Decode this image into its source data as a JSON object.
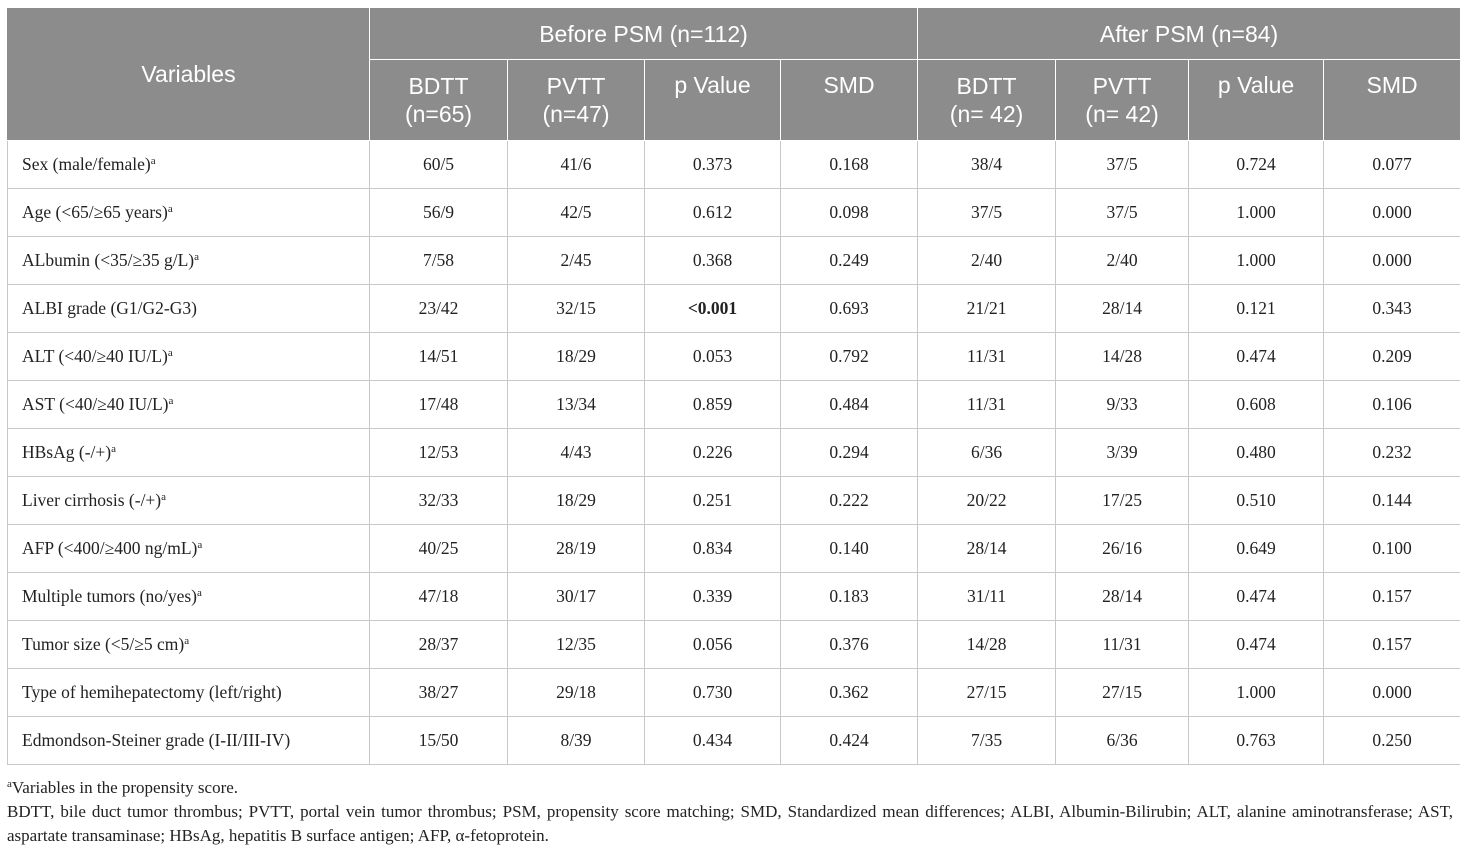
{
  "header": {
    "variables": "Variables",
    "group_before": "Before PSM (n=112)",
    "group_after": "After PSM (n=84)",
    "sub_before": [
      {
        "line1": "BDTT",
        "line2": "(n=65)"
      },
      {
        "line1": "PVTT",
        "line2": "(n=47)"
      },
      {
        "line1": "p Value",
        "line2": ""
      },
      {
        "line1": "SMD",
        "line2": ""
      }
    ],
    "sub_after": [
      {
        "line1": "BDTT",
        "line2": "(n= 42)"
      },
      {
        "line1": "PVTT",
        "line2": "(n= 42)"
      },
      {
        "line1": "p Value",
        "line2": ""
      },
      {
        "line1": "SMD",
        "line2": ""
      }
    ]
  },
  "rows": [
    {
      "label": "Sex (male/female)",
      "sup": "a",
      "values": [
        "60/5",
        "41/6",
        "0.373",
        "0.168",
        "38/4",
        "37/5",
        "0.724",
        "0.077"
      ]
    },
    {
      "label": "Age (<65/≥65 years)",
      "sup": "a",
      "values": [
        "56/9",
        "42/5",
        "0.612",
        "0.098",
        "37/5",
        "37/5",
        "1.000",
        "0.000"
      ]
    },
    {
      "label": "ALbumin (<35/≥35 g/L)",
      "sup": "a",
      "values": [
        "7/58",
        "2/45",
        "0.368",
        "0.249",
        "2/40",
        "2/40",
        "1.000",
        "0.000"
      ]
    },
    {
      "label": "ALBI grade (G1/G2-G3)",
      "sup": "",
      "values": [
        "23/42",
        "32/15",
        "<0.001",
        "0.693",
        "21/21",
        "28/14",
        "0.121",
        "0.343"
      ],
      "bold_col": 2
    },
    {
      "label": "ALT (<40/≥40 IU/L)",
      "sup": "a",
      "values": [
        "14/51",
        "18/29",
        "0.053",
        "0.792",
        "11/31",
        "14/28",
        "0.474",
        "0.209"
      ]
    },
    {
      "label": "AST (<40/≥40 IU/L)",
      "sup": "a",
      "values": [
        "17/48",
        "13/34",
        "0.859",
        "0.484",
        "11/31",
        "9/33",
        "0.608",
        "0.106"
      ]
    },
    {
      "label": "HBsAg (-/+)",
      "sup": "a",
      "values": [
        "12/53",
        "4/43",
        "0.226",
        "0.294",
        "6/36",
        "3/39",
        "0.480",
        "0.232"
      ]
    },
    {
      "label": "Liver cirrhosis (-/+)",
      "sup": "a",
      "values": [
        "32/33",
        "18/29",
        "0.251",
        "0.222",
        "20/22",
        "17/25",
        "0.510",
        "0.144"
      ]
    },
    {
      "label": "AFP (<400/≥400 ng/mL)",
      "sup": "a",
      "values": [
        "40/25",
        "28/19",
        "0.834",
        "0.140",
        "28/14",
        "26/16",
        "0.649",
        "0.100"
      ]
    },
    {
      "label": "Multiple tumors (no/yes)",
      "sup": "a",
      "values": [
        "47/18",
        "30/17",
        "0.339",
        "0.183",
        "31/11",
        "28/14",
        "0.474",
        "0.157"
      ]
    },
    {
      "label": "Tumor size (<5/≥5 cm)",
      "sup": "a",
      "values": [
        "28/37",
        "12/35",
        "0.056",
        "0.376",
        "14/28",
        "11/31",
        "0.474",
        "0.157"
      ]
    },
    {
      "label": "Type of hemihepatectomy (left/right)",
      "sup": "",
      "values": [
        "38/27",
        "29/18",
        "0.730",
        "0.362",
        "27/15",
        "27/15",
        "1.000",
        "0.000"
      ]
    },
    {
      "label": "Edmondson-Steiner grade (I-II/III-IV)",
      "sup": "",
      "values": [
        "15/50",
        "8/39",
        "0.434",
        "0.424",
        "7/35",
        "6/36",
        "0.763",
        "0.250"
      ]
    }
  ],
  "footnotes": {
    "note_a_sup": "a",
    "note_a_text": "Variables in the propensity score.",
    "abbreviations": "BDTT, bile duct tumor thrombus; PVTT, portal vein tumor thrombus; PSM, propensity score matching; SMD, Standardized mean differences; ALBI, Albumin-Bilirubin; ALT, alanine aminotransferase; AST, aspartate transaminase; HBsAg, hepatitis B surface antigen; AFP, α-fetoprotein."
  },
  "colors": {
    "header_bg": "#8c8c8c",
    "header_text": "#ffffff",
    "grid": "#c8c8c8",
    "text": "#222222"
  }
}
